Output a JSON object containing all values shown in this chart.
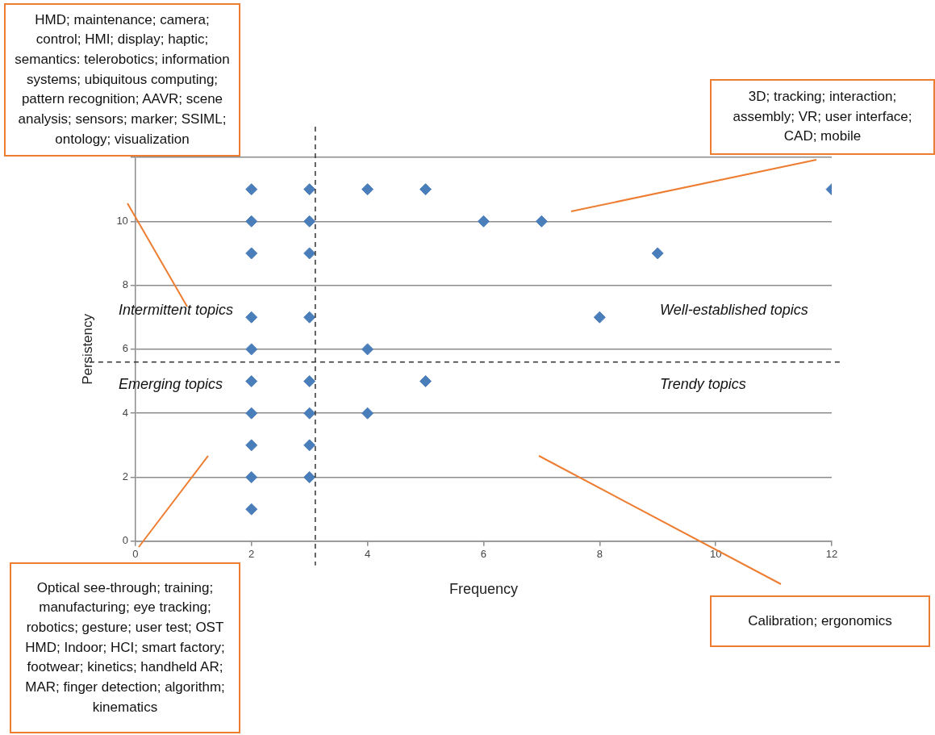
{
  "chart_data": {
    "type": "scatter",
    "xlabel": "Frequency",
    "ylabel": "Persistency",
    "x": [
      2,
      2,
      2,
      2,
      2,
      2,
      2,
      2,
      2,
      2,
      3,
      3,
      3,
      3,
      3,
      3,
      3,
      3,
      4,
      4,
      4,
      5,
      5,
      6,
      7,
      8,
      9,
      12
    ],
    "values": [
      11,
      10,
      9,
      7,
      6,
      5,
      4,
      3,
      2,
      1,
      11,
      10,
      9,
      7,
      5,
      4,
      3,
      2,
      11,
      6,
      4,
      11,
      5,
      10,
      10,
      7,
      9,
      11
    ],
    "color": "#4a7ebb",
    "marker": "diamond",
    "xlim": [
      0,
      12
    ],
    "xticks": [
      0,
      2,
      4,
      6,
      8,
      10,
      12
    ],
    "ylim": [
      0,
      12
    ],
    "yticks": [
      0,
      2,
      4,
      6,
      8,
      10,
      {
        "value": 12,
        "label": null
      }
    ],
    "grid": "y",
    "ref_lines": [
      {
        "axis": "x",
        "value": 3.1,
        "line_style": "dashed",
        "color": "#333333"
      },
      {
        "axis": "y",
        "value": 5.6,
        "line_style": "dashed",
        "color": "#333333"
      }
    ],
    "annotations": [
      "HMD; maintenance; camera; control; HMI; display; haptic; semantics: telerobotics; information systems; ubiquitous computing; pattern recognition; AAVR; scene analysis; sensors; marker; SSIML; ontology; visualization",
      "3D; tracking; interaction; assembly; VR; user interface; CAD; mobile",
      "Intermittent topics",
      "Well-established topics",
      "Emerging topics",
      "Trendy topics",
      "Optical see-through; training; manufacturing; eye tracking; robotics; gesture; user test; OST HMD; Indoor; HCI; smart factory; footwear; kinetics; handheld AR; MAR; finger detection; algorithm; kinematics",
      "Calibration; ergonomics"
    ]
  }
}
